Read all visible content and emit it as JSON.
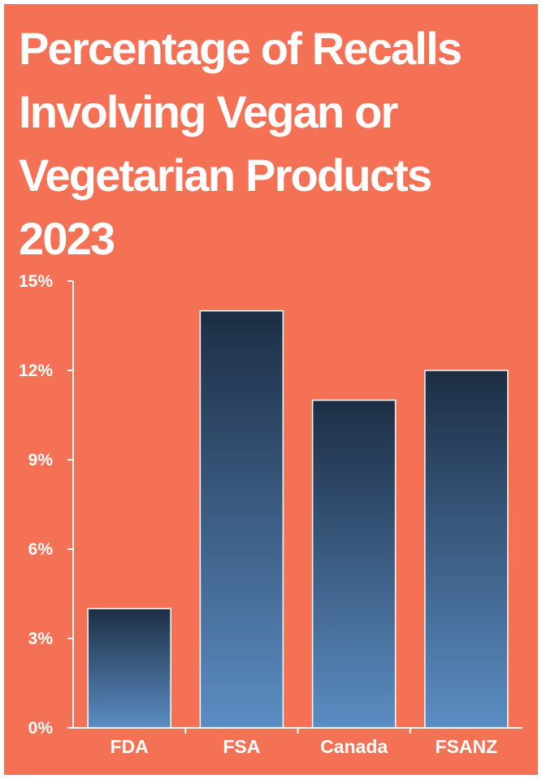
{
  "chart_data": {
    "type": "bar",
    "title": "Percentage of Recalls\nInvolving Vegan or\nVegetarian Products\n2023",
    "categories": [
      "FDA",
      "FSA",
      "Canada",
      "FSANZ"
    ],
    "values": [
      4,
      14,
      11,
      12
    ],
    "ylim": [
      0,
      15
    ],
    "yticks": [
      0,
      3,
      6,
      9,
      12,
      15
    ],
    "ytick_labels": [
      "0%",
      "3%",
      "6%",
      "9%",
      "12%",
      "15%"
    ],
    "xlabel": "",
    "ylabel": "",
    "grid": false,
    "legend": "none"
  },
  "colors": {
    "background": "#f47155",
    "text": "#ffffff",
    "bar_gradient_top": "#1d2e44",
    "bar_gradient_bottom": "#5b8dc3",
    "bar_outline": "#ffffff"
  }
}
